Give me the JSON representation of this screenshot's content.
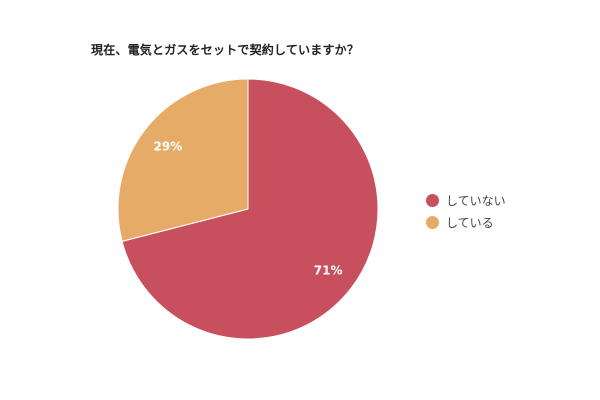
{
  "chart_data": {
    "type": "pie",
    "title": "現在、電気とガスをセットで契約していますか？",
    "slices": [
      {
        "name": "していない",
        "value": 71,
        "label": "71%",
        "color": "#c8505e"
      },
      {
        "name": "している",
        "value": 29,
        "label": "29%",
        "color": "#e6ac67"
      }
    ],
    "legend_position": "right"
  }
}
